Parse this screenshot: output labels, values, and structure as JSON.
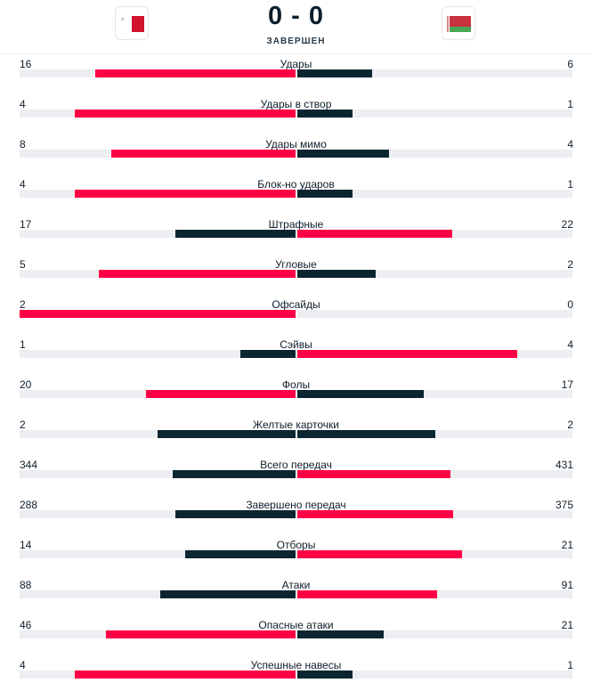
{
  "match": {
    "score": "0 - 0",
    "status": "ЗАВЕРШЕН",
    "home_flag": "malta-flag",
    "away_flag": "belarus-flag"
  },
  "colors": {
    "winner": "#ff0046",
    "loser": "#0b2631",
    "track": "#eceef1"
  },
  "stats": [
    {
      "label": "Удары",
      "home": "16",
      "away": "6"
    },
    {
      "label": "Удары в створ",
      "home": "4",
      "away": "1"
    },
    {
      "label": "Удары мимо",
      "home": "8",
      "away": "4"
    },
    {
      "label": "Блок-но ударов",
      "home": "4",
      "away": "1"
    },
    {
      "label": "Штрафные",
      "home": "17",
      "away": "22"
    },
    {
      "label": "Угловые",
      "home": "5",
      "away": "2"
    },
    {
      "label": "Офсайды",
      "home": "2",
      "away": "0"
    },
    {
      "label": "Сэйвы",
      "home": "1",
      "away": "4"
    },
    {
      "label": "Фолы",
      "home": "20",
      "away": "17"
    },
    {
      "label": "Желтые карточки",
      "home": "2",
      "away": "2"
    },
    {
      "label": "Всего передач",
      "home": "344",
      "away": "431"
    },
    {
      "label": "Завершено передач",
      "home": "288",
      "away": "375"
    },
    {
      "label": "Отборы",
      "home": "14",
      "away": "21"
    },
    {
      "label": "Атаки",
      "home": "88",
      "away": "91"
    },
    {
      "label": "Опасные атаки",
      "home": "46",
      "away": "21"
    },
    {
      "label": "Успешные навесы",
      "home": "4",
      "away": "1"
    }
  ]
}
